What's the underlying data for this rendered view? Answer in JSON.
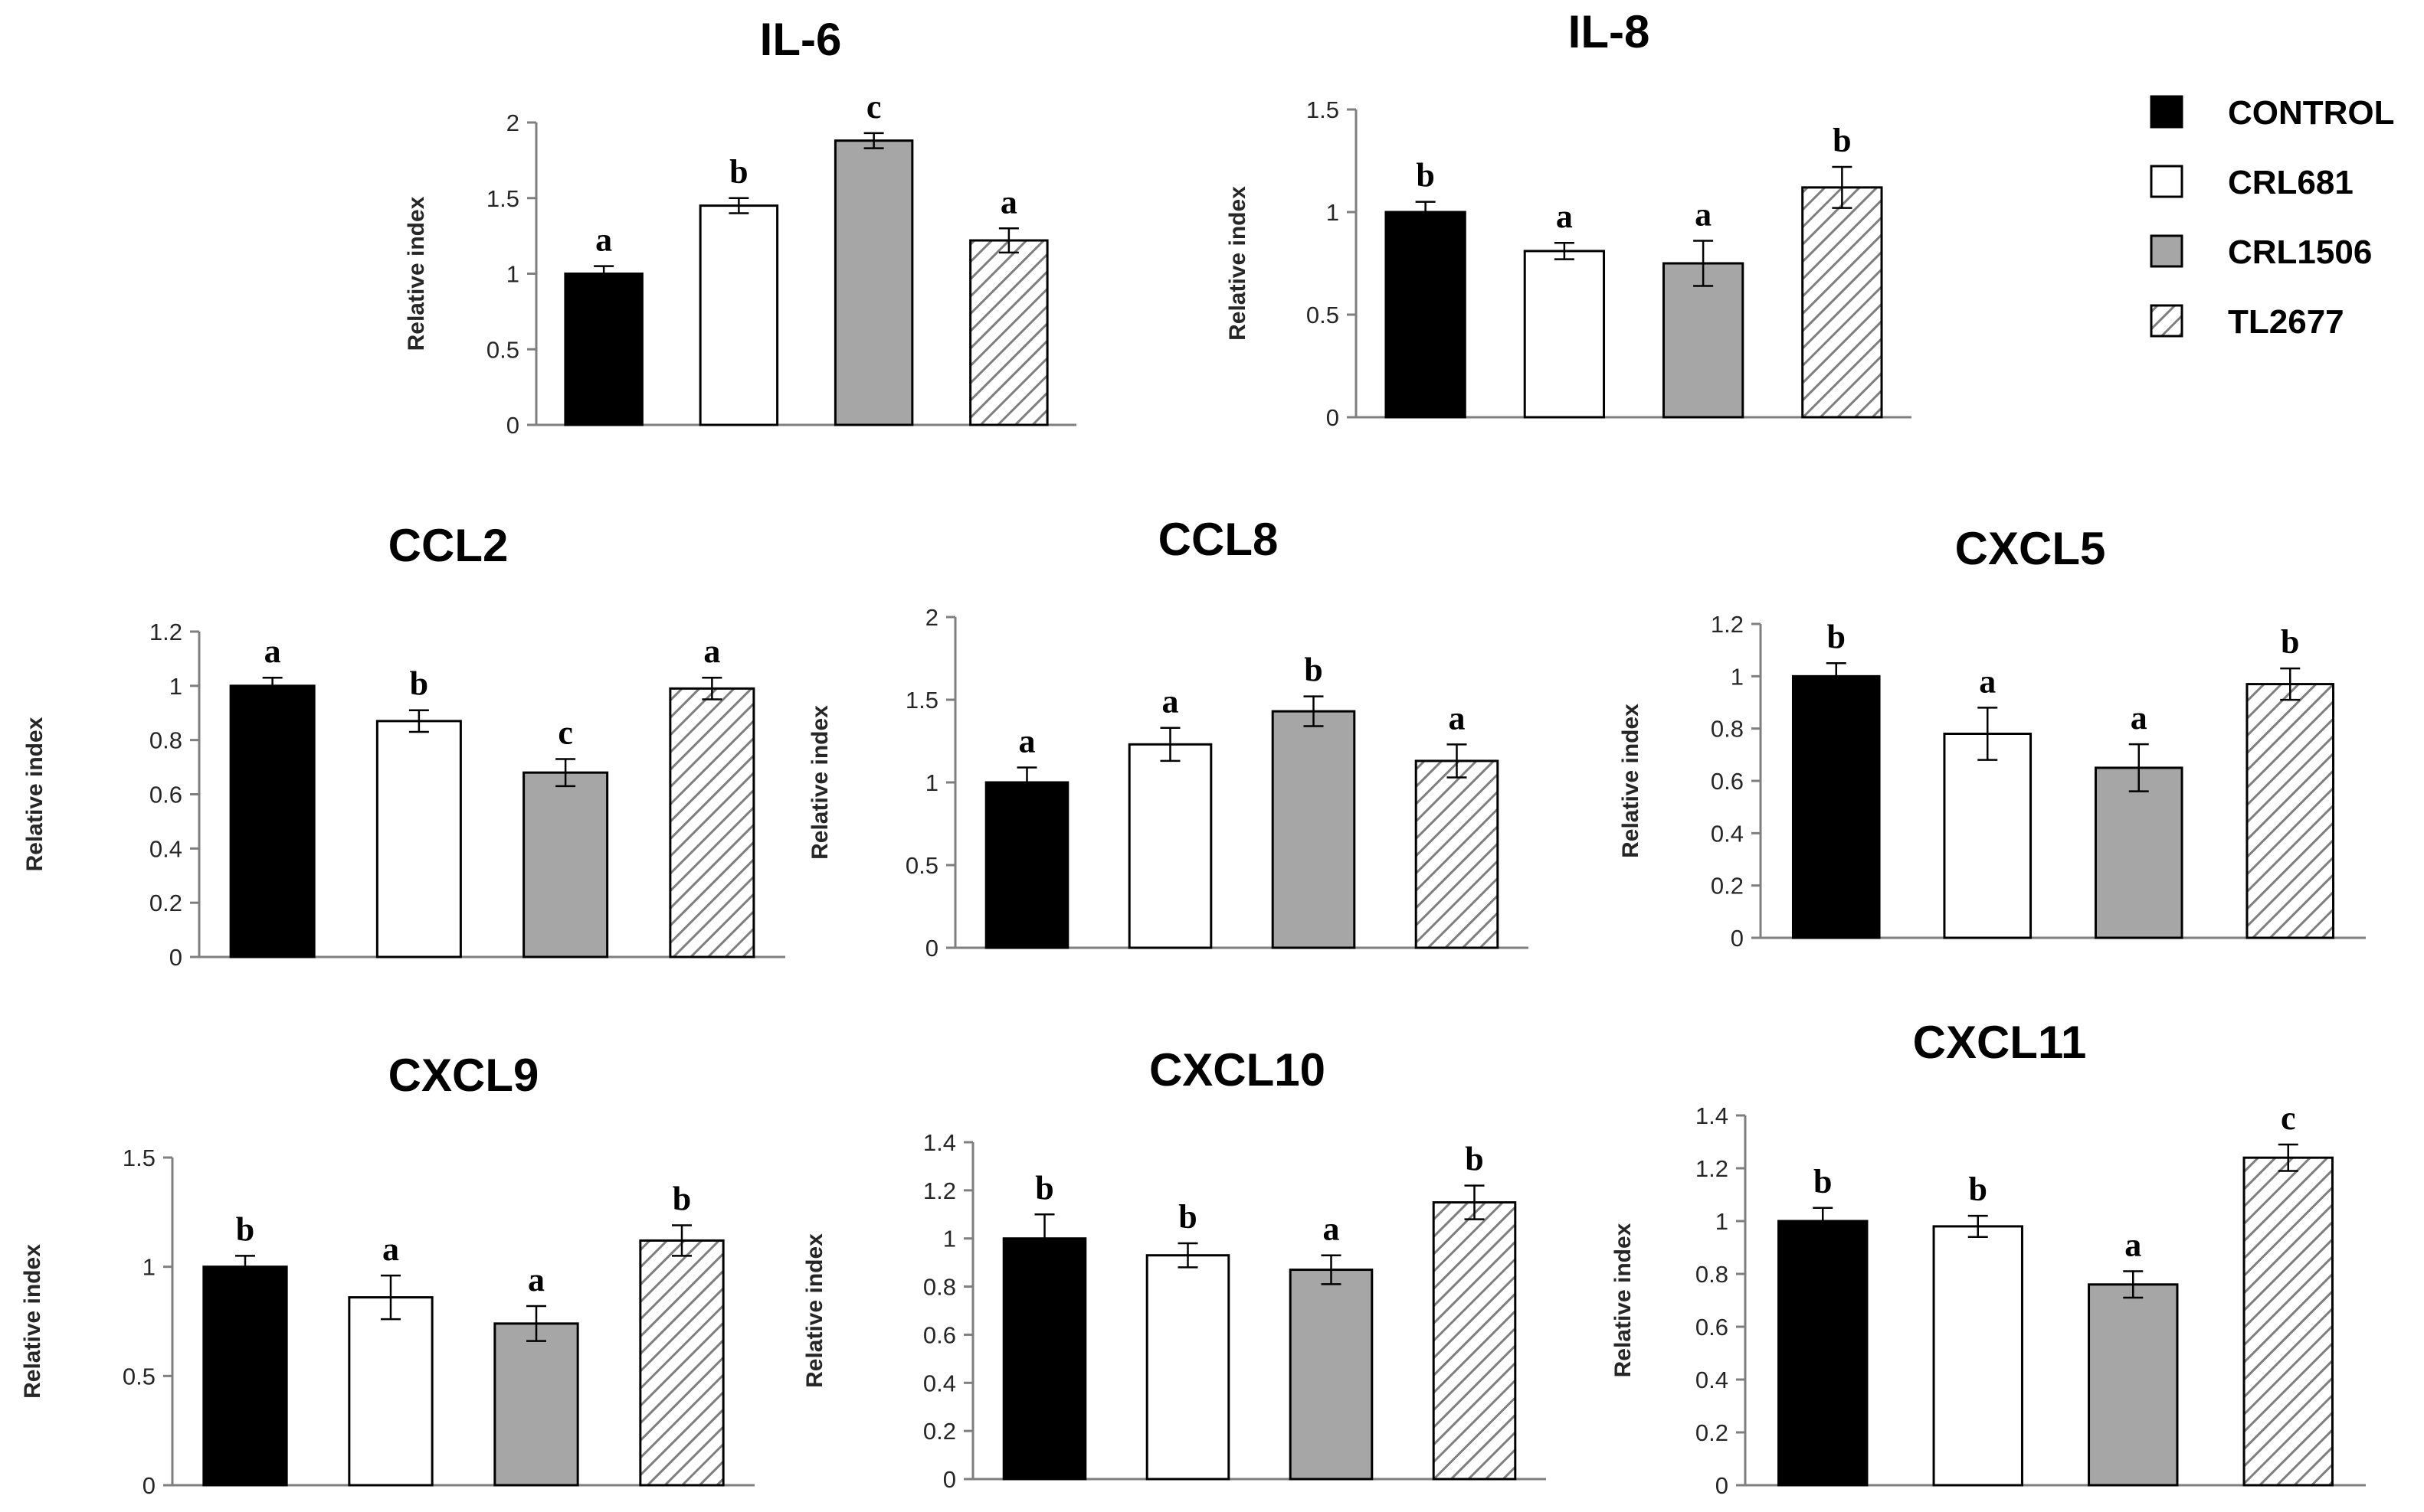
{
  "colors": {
    "CONTROL": "#000000",
    "CRL681": "#ffffff",
    "CRL1506": "#a6a6a6",
    "TL2677": "hatch",
    "axis": "#7f7f7f",
    "text": "#000000"
  },
  "legend": {
    "items": [
      {
        "label": "CONTROL",
        "fill": "solid-black"
      },
      {
        "label": "CRL681",
        "fill": "white"
      },
      {
        "label": "CRL1506",
        "fill": "gray"
      },
      {
        "label": "TL2677",
        "fill": "hatch"
      }
    ]
  },
  "chart_data": [
    {
      "type": "bar",
      "title": "IL-6",
      "ylabel": "Relative index",
      "ylim": [
        0,
        2
      ],
      "yticks": [
        "0",
        "0.5",
        "1",
        "1.5",
        "2"
      ],
      "categories": [
        "CONTROL",
        "CRL681",
        "CRL1506",
        "TL2677"
      ],
      "values": [
        1.0,
        1.45,
        1.88,
        1.22
      ],
      "errors": [
        0.05,
        0.05,
        0.05,
        0.08
      ],
      "letters": [
        "a",
        "b",
        "c",
        "a"
      ]
    },
    {
      "type": "bar",
      "title": "IL-8",
      "ylabel": "Relative index",
      "ylim": [
        0,
        1.5
      ],
      "yticks": [
        "0",
        "0.5",
        "1",
        "1.5"
      ],
      "categories": [
        "CONTROL",
        "CRL681",
        "CRL1506",
        "TL2677"
      ],
      "values": [
        1.0,
        0.81,
        0.75,
        1.12
      ],
      "errors": [
        0.05,
        0.04,
        0.11,
        0.1
      ],
      "letters": [
        "b",
        "a",
        "a",
        "b"
      ]
    },
    {
      "type": "bar",
      "title": "CCL2",
      "ylabel": "Relative index",
      "ylim": [
        0,
        1.2
      ],
      "yticks": [
        "0",
        "0.2",
        "0.4",
        "0.6",
        "0.8",
        "1",
        "1.2"
      ],
      "categories": [
        "CONTROL",
        "CRL681",
        "CRL1506",
        "TL2677"
      ],
      "values": [
        1.0,
        0.87,
        0.68,
        0.99
      ],
      "errors": [
        0.03,
        0.04,
        0.05,
        0.04
      ],
      "letters": [
        "a",
        "b",
        "c",
        "a"
      ]
    },
    {
      "type": "bar",
      "title": "CCL8",
      "ylabel": "Relative index",
      "ylim": [
        0,
        2
      ],
      "yticks": [
        "0",
        "0.5",
        "1",
        "1.5",
        "2"
      ],
      "categories": [
        "CONTROL",
        "CRL681",
        "CRL1506",
        "TL2677"
      ],
      "values": [
        1.0,
        1.23,
        1.43,
        1.13
      ],
      "errors": [
        0.09,
        0.1,
        0.09,
        0.1
      ],
      "letters": [
        "a",
        "a",
        "b",
        "a"
      ]
    },
    {
      "type": "bar",
      "title": "CXCL5",
      "ylabel": "Relative index",
      "ylim": [
        0,
        1.2
      ],
      "yticks": [
        "0",
        "0.2",
        "0.4",
        "0.6",
        "0.8",
        "1",
        "1.2"
      ],
      "categories": [
        "CONTROL",
        "CRL681",
        "CRL1506",
        "TL2677"
      ],
      "values": [
        1.0,
        0.78,
        0.65,
        0.97
      ],
      "errors": [
        0.05,
        0.1,
        0.09,
        0.06
      ],
      "letters": [
        "b",
        "a",
        "a",
        "b"
      ]
    },
    {
      "type": "bar",
      "title": "CXCL9",
      "ylabel": "Relative index",
      "ylim": [
        0,
        1.5
      ],
      "yticks": [
        "0",
        "0.5",
        "1",
        "1.5"
      ],
      "categories": [
        "CONTROL",
        "CRL681",
        "CRL1506",
        "TL2677"
      ],
      "values": [
        1.0,
        0.86,
        0.74,
        1.12
      ],
      "errors": [
        0.05,
        0.1,
        0.08,
        0.07
      ],
      "letters": [
        "b",
        "a",
        "a",
        "b"
      ]
    },
    {
      "type": "bar",
      "title": "CXCL10",
      "ylabel": "Relative index",
      "ylim": [
        0,
        1.4
      ],
      "yticks": [
        "0",
        "0.2",
        "0.4",
        "0.6",
        "0.8",
        "1",
        "1.2",
        "1.4"
      ],
      "categories": [
        "CONTROL",
        "CRL681",
        "CRL1506",
        "TL2677"
      ],
      "values": [
        1.0,
        0.93,
        0.87,
        1.15
      ],
      "errors": [
        0.1,
        0.05,
        0.06,
        0.07
      ],
      "letters": [
        "b",
        "b",
        "a",
        "b"
      ]
    },
    {
      "type": "bar",
      "title": "CXCL11",
      "ylabel": "Relative index",
      "ylim": [
        0,
        1.4
      ],
      "yticks": [
        "0",
        "0.2",
        "0.4",
        "0.6",
        "0.8",
        "1",
        "1.2",
        "1.4"
      ],
      "categories": [
        "CONTROL",
        "CRL681",
        "CRL1506",
        "TL2677"
      ],
      "values": [
        1.0,
        0.98,
        0.76,
        1.24
      ],
      "errors": [
        0.05,
        0.04,
        0.05,
        0.05
      ],
      "letters": [
        "b",
        "b",
        "a",
        "c"
      ]
    }
  ]
}
